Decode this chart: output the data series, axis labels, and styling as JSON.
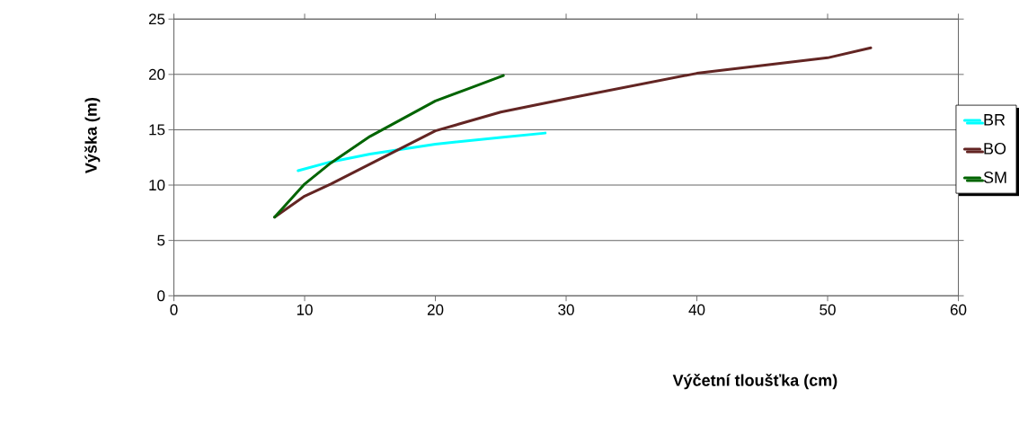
{
  "chart_data": {
    "type": "line",
    "xlabel": "Výčetní tloušťka (cm)",
    "ylabel": "Výška (m)",
    "xlim": [
      0,
      60
    ],
    "xticks": [
      0,
      10,
      20,
      30,
      40,
      50,
      60
    ],
    "ylim": [
      0,
      25
    ],
    "yticks": [
      0,
      5,
      10,
      15,
      20,
      25
    ],
    "grid": "y",
    "legend": "right",
    "marker": "none",
    "line_style": "solid",
    "series": [
      {
        "name": "BR",
        "color": "#00ffff",
        "x": [
          9.5,
          12,
          15,
          20,
          25,
          28.4
        ],
        "values": [
          11.3,
          12.1,
          12.8,
          13.7,
          14.3,
          14.7
        ]
      },
      {
        "name": "BO",
        "color": "#632523",
        "x": [
          7.7,
          10,
          12,
          15,
          20,
          25,
          30,
          40,
          50,
          53.3
        ],
        "values": [
          7.1,
          9.0,
          10.1,
          11.9,
          14.9,
          16.6,
          17.8,
          20.1,
          21.5,
          22.4
        ]
      },
      {
        "name": "SM",
        "color": "#006400",
        "x": [
          7.7,
          10,
          12,
          15,
          20,
          22.5,
          25.2
        ],
        "values": [
          7.1,
          10.1,
          12.0,
          14.4,
          17.6,
          18.7,
          19.9
        ]
      }
    ]
  }
}
